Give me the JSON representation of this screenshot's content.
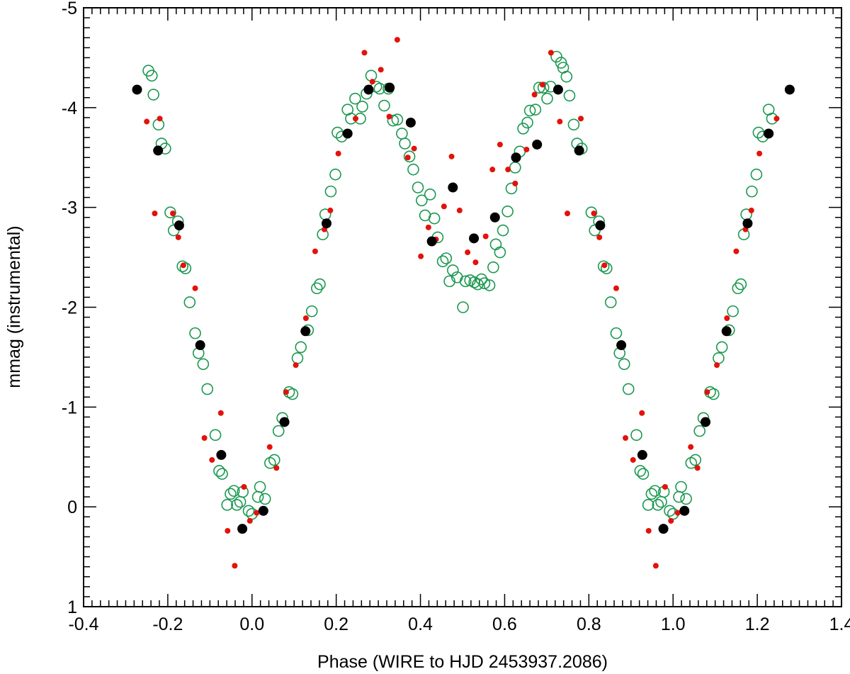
{
  "chart_data": {
    "type": "scatter",
    "title": "",
    "xlabel": "Phase (WIRE to HJD 2453937.2086)",
    "ylabel": "mmag (instrumental)",
    "xlim": [
      -0.4,
      1.4
    ],
    "ylim": [
      1.0,
      -5.0
    ],
    "y_inverted": true,
    "x_ticks": [
      -0.4,
      -0.2,
      0.0,
      0.2,
      0.4,
      0.6,
      0.8,
      1.0,
      1.2,
      1.4
    ],
    "x_tick_labels": [
      "-0.4",
      "-0.2",
      "0.0",
      "0.2",
      "0.4",
      "0.6",
      "0.8",
      "1.0",
      "1.2",
      "1.4"
    ],
    "y_ticks": [
      -5,
      -4,
      -3,
      -2,
      -1,
      0,
      1
    ],
    "y_tick_labels": [
      "-5",
      "-4",
      "-3",
      "-2",
      "-1",
      "0",
      "1"
    ],
    "grid": false,
    "legend": "none",
    "series": [
      {
        "marker": "open-circle",
        "color": "#1a9850",
        "points": [
          [
            -0.246,
            -4.37
          ],
          [
            -0.238,
            -4.32
          ],
          [
            -0.234,
            -4.13
          ],
          [
            -0.222,
            -3.83
          ],
          [
            -0.215,
            -3.64
          ],
          [
            -0.206,
            -3.59
          ],
          [
            -0.194,
            -2.95
          ],
          [
            -0.186,
            -2.77
          ],
          [
            -0.176,
            -2.86
          ],
          [
            -0.165,
            -2.41
          ],
          [
            -0.158,
            -2.39
          ],
          [
            -0.148,
            -2.05
          ],
          [
            -0.135,
            -1.74
          ],
          [
            -0.127,
            -1.54
          ],
          [
            -0.116,
            -1.43
          ],
          [
            -0.106,
            -1.18
          ],
          [
            -0.087,
            -0.72
          ],
          [
            -0.078,
            -0.36
          ],
          [
            -0.071,
            -0.33
          ],
          [
            -0.059,
            -0.02
          ],
          [
            -0.051,
            -0.13
          ],
          [
            -0.043,
            -0.16
          ],
          [
            -0.036,
            -0.02
          ],
          [
            -0.028,
            -0.05
          ],
          [
            -0.022,
            -0.15
          ],
          [
            -0.008,
            0.04
          ],
          [
            0.0,
            0.07
          ],
          [
            0.014,
            -0.1
          ],
          [
            0.019,
            -0.2
          ],
          [
            0.031,
            -0.08
          ],
          [
            0.043,
            -0.44
          ],
          [
            0.053,
            -0.47
          ],
          [
            0.063,
            -0.76
          ],
          [
            0.072,
            -0.89
          ],
          [
            0.088,
            -1.15
          ],
          [
            0.096,
            -1.13
          ],
          [
            0.108,
            -1.49
          ],
          [
            0.116,
            -1.6
          ],
          [
            0.133,
            -1.77
          ],
          [
            0.142,
            -1.96
          ],
          [
            0.154,
            -2.19
          ],
          [
            0.161,
            -2.23
          ],
          [
            0.168,
            -2.73
          ],
          [
            0.174,
            -2.93
          ],
          [
            0.187,
            -3.16
          ],
          [
            0.198,
            -3.33
          ],
          [
            0.203,
            -3.75
          ],
          [
            0.213,
            -3.71
          ],
          [
            0.227,
            -3.98
          ],
          [
            0.235,
            -3.89
          ],
          [
            0.245,
            -4.09
          ],
          [
            0.257,
            -3.89
          ],
          [
            0.262,
            -4.01
          ],
          [
            0.272,
            -4.14
          ],
          [
            0.283,
            -4.32
          ],
          [
            0.295,
            -4.21
          ],
          [
            0.303,
            -4.19
          ],
          [
            0.314,
            -4.02
          ],
          [
            0.324,
            -4.19
          ],
          [
            0.335,
            -3.87
          ],
          [
            0.345,
            -3.88
          ],
          [
            0.356,
            -3.74
          ],
          [
            0.363,
            -3.64
          ],
          [
            0.374,
            -3.51
          ],
          [
            0.383,
            -3.38
          ],
          [
            0.394,
            -3.2
          ],
          [
            0.403,
            -3.07
          ],
          [
            0.411,
            -2.92
          ],
          [
            0.423,
            -3.13
          ],
          [
            0.433,
            -2.89
          ],
          [
            0.441,
            -2.7
          ],
          [
            0.453,
            -2.46
          ],
          [
            0.461,
            -2.49
          ],
          [
            0.469,
            -2.26
          ],
          [
            0.477,
            -2.37
          ],
          [
            0.487,
            -2.3
          ],
          [
            0.501,
            -2.0
          ],
          [
            0.507,
            -2.26
          ],
          [
            0.518,
            -2.27
          ],
          [
            0.528,
            -2.25
          ],
          [
            0.536,
            -2.23
          ],
          [
            0.545,
            -2.28
          ],
          [
            0.552,
            -2.24
          ],
          [
            0.564,
            -2.22
          ],
          [
            0.573,
            -2.4
          ],
          [
            0.579,
            -2.63
          ],
          [
            0.589,
            -2.55
          ],
          [
            0.596,
            -2.77
          ],
          [
            0.607,
            -2.96
          ],
          [
            0.616,
            -3.19
          ],
          [
            0.625,
            -3.4
          ],
          [
            0.636,
            -3.56
          ],
          [
            0.644,
            -3.79
          ],
          [
            0.654,
            -3.85
          ],
          [
            0.66,
            -3.97
          ],
          [
            0.673,
            -3.98
          ],
          [
            0.682,
            -4.2
          ],
          [
            0.692,
            -4.2
          ],
          [
            0.701,
            -4.09
          ],
          [
            0.709,
            -4.21
          ],
          [
            0.723,
            -4.51
          ],
          [
            0.734,
            -4.45
          ],
          [
            0.739,
            -4.4
          ],
          [
            0.747,
            -4.31
          ],
          [
            0.754,
            -4.12
          ],
          [
            0.764,
            -3.83
          ],
          [
            0.772,
            -3.64
          ],
          [
            0.783,
            -3.59
          ],
          [
            0.806,
            -2.95
          ],
          [
            0.814,
            -2.77
          ],
          [
            0.824,
            -2.86
          ],
          [
            0.835,
            -2.41
          ],
          [
            0.842,
            -2.39
          ],
          [
            0.852,
            -2.05
          ],
          [
            0.865,
            -1.74
          ],
          [
            0.873,
            -1.54
          ],
          [
            0.884,
            -1.43
          ],
          [
            0.894,
            -1.18
          ],
          [
            0.913,
            -0.72
          ],
          [
            0.922,
            -0.36
          ],
          [
            0.929,
            -0.33
          ],
          [
            0.941,
            -0.02
          ],
          [
            0.949,
            -0.13
          ],
          [
            0.957,
            -0.16
          ],
          [
            0.964,
            -0.02
          ],
          [
            0.972,
            -0.05
          ],
          [
            0.978,
            -0.15
          ],
          [
            0.992,
            0.04
          ],
          [
            1.0,
            0.07
          ],
          [
            1.014,
            -0.1
          ],
          [
            1.019,
            -0.2
          ],
          [
            1.031,
            -0.08
          ],
          [
            1.043,
            -0.44
          ],
          [
            1.053,
            -0.47
          ],
          [
            1.063,
            -0.76
          ],
          [
            1.072,
            -0.89
          ],
          [
            1.088,
            -1.15
          ],
          [
            1.096,
            -1.13
          ],
          [
            1.108,
            -1.49
          ],
          [
            1.116,
            -1.6
          ],
          [
            1.133,
            -1.77
          ],
          [
            1.142,
            -1.96
          ],
          [
            1.154,
            -2.19
          ],
          [
            1.161,
            -2.23
          ],
          [
            1.168,
            -2.73
          ],
          [
            1.174,
            -2.93
          ],
          [
            1.187,
            -3.16
          ],
          [
            1.198,
            -3.33
          ],
          [
            1.203,
            -3.75
          ],
          [
            1.213,
            -3.71
          ],
          [
            1.227,
            -3.98
          ],
          [
            1.235,
            -3.89
          ]
        ]
      },
      {
        "marker": "small-filled-circle",
        "color": "#e3120b",
        "points": [
          [
            -0.25,
            -3.86
          ],
          [
            -0.231,
            -2.94
          ],
          [
            -0.219,
            -3.89
          ],
          [
            -0.188,
            -2.94
          ],
          [
            -0.175,
            -2.7
          ],
          [
            -0.163,
            -2.42
          ],
          [
            -0.135,
            -2.19
          ],
          [
            -0.113,
            -0.69
          ],
          [
            -0.095,
            -0.47
          ],
          [
            -0.074,
            -0.94
          ],
          [
            -0.058,
            0.24
          ],
          [
            -0.041,
            0.59
          ],
          [
            -0.019,
            -0.2
          ],
          [
            -0.005,
            0.14
          ],
          [
            0.011,
            0.06
          ],
          [
            0.042,
            -0.6
          ],
          [
            0.058,
            -0.39
          ],
          [
            0.081,
            -1.15
          ],
          [
            0.104,
            -1.42
          ],
          [
            0.128,
            -1.89
          ],
          [
            0.15,
            -2.56
          ],
          [
            0.172,
            -2.78
          ],
          [
            0.186,
            -2.97
          ],
          [
            0.205,
            -3.54
          ],
          [
            0.225,
            -3.72
          ],
          [
            0.246,
            -3.89
          ],
          [
            0.267,
            -4.55
          ],
          [
            0.286,
            -4.26
          ],
          [
            0.306,
            -4.38
          ],
          [
            0.326,
            -3.91
          ],
          [
            0.345,
            -4.68
          ],
          [
            0.37,
            -3.5
          ],
          [
            0.385,
            -3.59
          ],
          [
            0.401,
            -2.51
          ],
          [
            0.419,
            -2.8
          ],
          [
            0.437,
            -2.68
          ],
          [
            0.456,
            -3.01
          ],
          [
            0.474,
            -3.51
          ],
          [
            0.493,
            -2.97
          ],
          [
            0.512,
            -2.55
          ],
          [
            0.531,
            -2.45
          ],
          [
            0.555,
            -2.71
          ],
          [
            0.571,
            -3.38
          ],
          [
            0.589,
            -3.63
          ],
          [
            0.608,
            -3.38
          ],
          [
            0.625,
            -3.24
          ],
          [
            0.652,
            -3.58
          ],
          [
            0.671,
            -4.13
          ],
          [
            0.69,
            -4.23
          ],
          [
            0.71,
            -4.55
          ],
          [
            0.731,
            -3.86
          ],
          [
            0.749,
            -2.94
          ],
          [
            0.781,
            -3.89
          ],
          [
            0.812,
            -2.94
          ],
          [
            0.825,
            -2.7
          ],
          [
            0.837,
            -2.42
          ],
          [
            0.865,
            -2.19
          ],
          [
            0.887,
            -0.69
          ],
          [
            0.905,
            -0.47
          ],
          [
            0.926,
            -0.94
          ],
          [
            0.942,
            0.24
          ],
          [
            0.959,
            0.59
          ],
          [
            0.981,
            -0.2
          ],
          [
            0.995,
            0.14
          ],
          [
            1.011,
            0.06
          ],
          [
            1.042,
            -0.6
          ],
          [
            1.058,
            -0.39
          ],
          [
            1.081,
            -1.15
          ],
          [
            1.104,
            -1.42
          ],
          [
            1.128,
            -1.89
          ],
          [
            1.15,
            -2.56
          ],
          [
            1.172,
            -2.78
          ],
          [
            1.186,
            -2.97
          ],
          [
            1.205,
            -3.54
          ],
          [
            1.225,
            -3.72
          ],
          [
            1.246,
            -3.89
          ]
        ]
      },
      {
        "marker": "large-filled-circle",
        "color": "#000000",
        "points": [
          [
            -0.273,
            -4.18
          ],
          [
            -0.223,
            -3.57
          ],
          [
            -0.173,
            -2.82
          ],
          [
            -0.123,
            -1.62
          ],
          [
            -0.073,
            -0.52
          ],
          [
            -0.023,
            0.22
          ],
          [
            0.027,
            0.04
          ],
          [
            0.077,
            -0.85
          ],
          [
            0.127,
            -1.76
          ],
          [
            0.177,
            -2.84
          ],
          [
            0.227,
            -3.74
          ],
          [
            0.277,
            -4.18
          ],
          [
            0.327,
            -4.2
          ],
          [
            0.377,
            -3.85
          ],
          [
            0.427,
            -2.66
          ],
          [
            0.477,
            -3.2
          ],
          [
            0.527,
            -2.69
          ],
          [
            0.577,
            -2.9
          ],
          [
            0.627,
            -3.5
          ],
          [
            0.677,
            -3.63
          ],
          [
            0.727,
            -4.18
          ],
          [
            0.777,
            -3.57
          ],
          [
            0.827,
            -2.82
          ],
          [
            0.877,
            -1.62
          ],
          [
            0.927,
            -0.52
          ],
          [
            0.977,
            0.22
          ],
          [
            1.027,
            0.04
          ],
          [
            1.077,
            -0.85
          ],
          [
            1.127,
            -1.76
          ],
          [
            1.177,
            -2.84
          ],
          [
            1.227,
            -3.74
          ],
          [
            1.277,
            -4.18
          ]
        ]
      }
    ]
  }
}
